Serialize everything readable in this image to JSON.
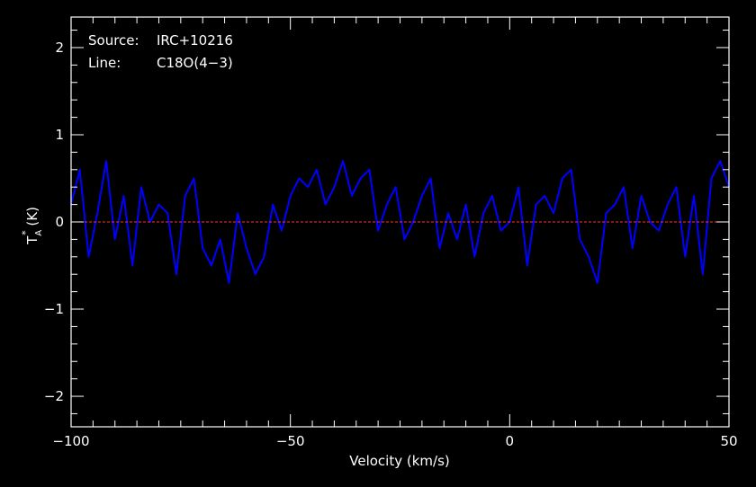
{
  "chart_data": {
    "type": "line",
    "title": "",
    "xlabel": "Velocity (km/s)",
    "ylabel_main": "T",
    "ylabel_sub": "A",
    "ylabel_sup": "*",
    "ylabel_unit": " (K)",
    "xlim": [
      -100,
      50
    ],
    "ylim": [
      -2.35,
      2.35
    ],
    "xticks": [
      {
        "value": -100,
        "label": "−100"
      },
      {
        "value": -50,
        "label": "−50"
      },
      {
        "value": 0,
        "label": "0"
      },
      {
        "value": 50,
        "label": "50"
      }
    ],
    "yticks": [
      {
        "value": -2,
        "label": "−2"
      },
      {
        "value": -1,
        "label": "−1"
      },
      {
        "value": 0,
        "label": "0"
      },
      {
        "value": 1,
        "label": "1"
      },
      {
        "value": 2,
        "label": "2"
      }
    ],
    "annotations": {
      "source_label": "Source:",
      "source_value": "IRC+10216",
      "line_label": "Line:",
      "line_value": "C18O(4−3)"
    },
    "baseline": 0,
    "grid": false,
    "legend": "none",
    "colors": {
      "series": "#0000ff",
      "baseline": "#ff3333",
      "axes": "#ffffff",
      "background": "#000000"
    },
    "series": [
      {
        "x": [
          -100,
          -98,
          -96,
          -94,
          -92,
          -90,
          -88,
          -86,
          -84,
          -82,
          -80,
          -78,
          -76,
          -74,
          -72,
          -70,
          -68,
          -66,
          -64,
          -62,
          -60,
          -58,
          -56,
          -54,
          -52,
          -50,
          -48,
          -46,
          -44,
          -42,
          -40,
          -38,
          -36,
          -34,
          -32,
          -30,
          -28,
          -26,
          -24,
          -22,
          -20,
          -18,
          -16,
          -14,
          -12,
          -10,
          -8,
          -6,
          -4,
          -2,
          0,
          2,
          4,
          6,
          8,
          10,
          12,
          14,
          16,
          18,
          20,
          22,
          24,
          26,
          28,
          30,
          32,
          34,
          36,
          38,
          40,
          42,
          44,
          46,
          48,
          50
        ],
        "y": [
          0.2,
          0.6,
          -0.4,
          0.1,
          0.7,
          -0.2,
          0.3,
          -0.5,
          0.4,
          0.0,
          0.2,
          0.1,
          -0.6,
          0.3,
          0.5,
          -0.3,
          -0.5,
          -0.2,
          -0.7,
          0.1,
          -0.3,
          -0.6,
          -0.4,
          0.2,
          -0.1,
          0.3,
          0.5,
          0.4,
          0.6,
          0.2,
          0.4,
          0.7,
          0.3,
          0.5,
          0.6,
          -0.1,
          0.2,
          0.4,
          -0.2,
          0.0,
          0.3,
          0.5,
          -0.3,
          0.1,
          -0.2,
          0.2,
          -0.4,
          0.1,
          0.3,
          -0.1,
          0.0,
          0.4,
          -0.5,
          0.2,
          0.3,
          0.1,
          0.5,
          0.6,
          -0.2,
          -0.4,
          -0.7,
          0.1,
          0.2,
          0.4,
          -0.3,
          0.3,
          0.0,
          -0.1,
          0.2,
          0.4,
          -0.4,
          0.3,
          -0.6,
          0.5,
          0.7,
          0.4
        ]
      }
    ]
  }
}
